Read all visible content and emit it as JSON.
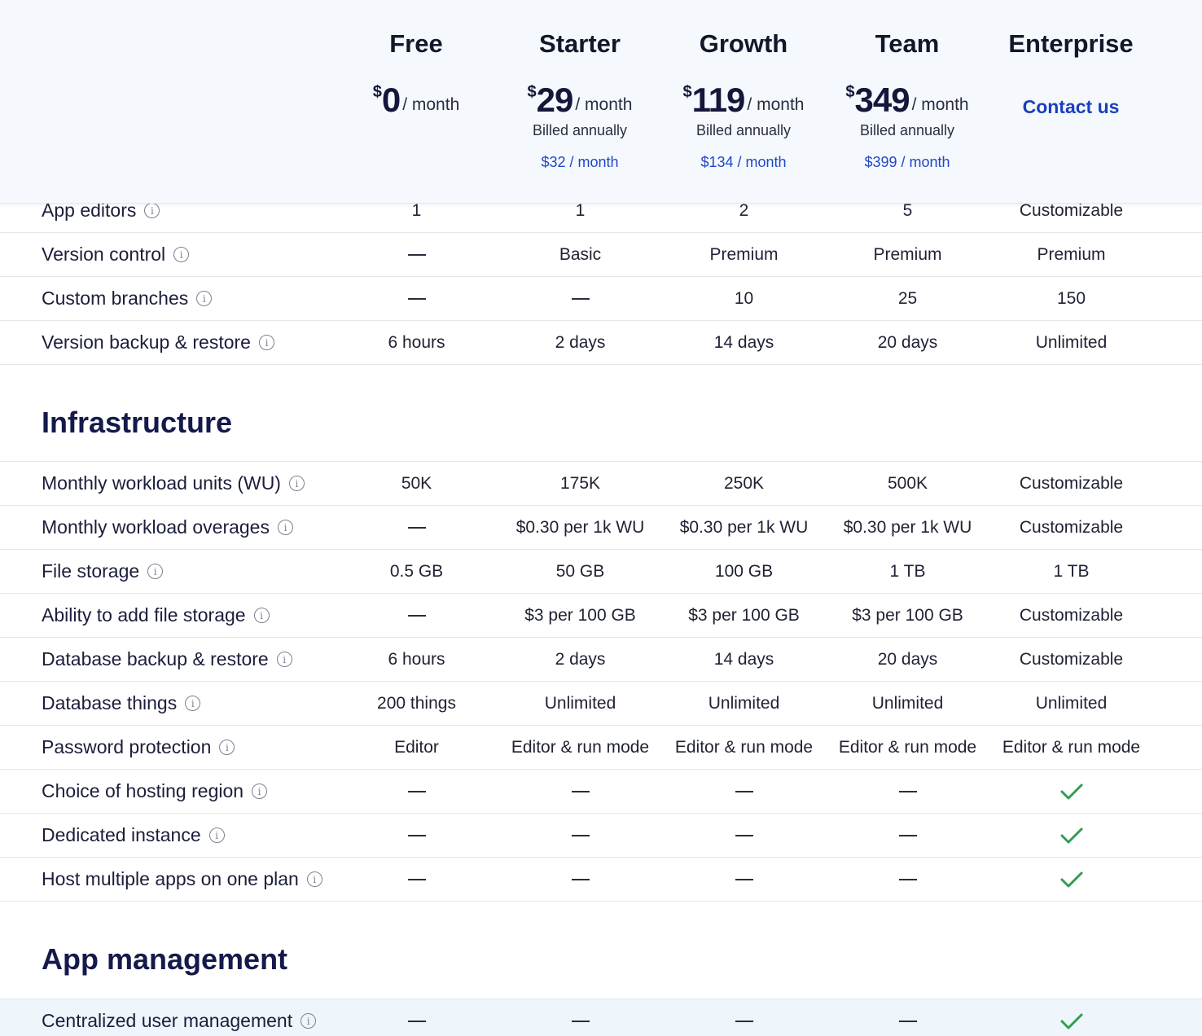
{
  "plans": [
    {
      "name": "Free",
      "currency": "$",
      "amount": "0",
      "per": "/ month",
      "billed": "",
      "monthly": ""
    },
    {
      "name": "Starter",
      "currency": "$",
      "amount": "29",
      "per": "/ month",
      "billed": "Billed annually",
      "monthly": "$32 / month"
    },
    {
      "name": "Growth",
      "currency": "$",
      "amount": "119",
      "per": "/ month",
      "billed": "Billed annually",
      "monthly": "$134 / month"
    },
    {
      "name": "Team",
      "currency": "$",
      "amount": "349",
      "per": "/ month",
      "billed": "Billed annually",
      "monthly": "$399 / month"
    },
    {
      "name": "Enterprise",
      "contact": "Contact us"
    }
  ],
  "top_rows": [
    {
      "feature": "App editors",
      "values": [
        "1",
        "1",
        "2",
        "5",
        "Customizable"
      ]
    },
    {
      "feature": "Version control",
      "values": [
        "—",
        "Basic",
        "Premium",
        "Premium",
        "Premium"
      ]
    },
    {
      "feature": "Custom branches",
      "values": [
        "—",
        "—",
        "10",
        "25",
        "150"
      ]
    },
    {
      "feature": "Version backup & restore",
      "values": [
        "6 hours",
        "2 days",
        "14 days",
        "20 days",
        "Unlimited"
      ]
    }
  ],
  "infrastructure": {
    "title": "Infrastructure",
    "rows": [
      {
        "feature": "Monthly workload units (WU)",
        "values": [
          "50K",
          "175K",
          "250K",
          "500K",
          "Customizable"
        ]
      },
      {
        "feature": "Monthly workload overages",
        "values": [
          "—",
          "$0.30 per 1k WU",
          "$0.30 per 1k WU",
          "$0.30 per 1k WU",
          "Customizable"
        ]
      },
      {
        "feature": "File storage",
        "values": [
          "0.5 GB",
          "50 GB",
          "100 GB",
          "1 TB",
          "1 TB"
        ]
      },
      {
        "feature": "Ability to add file storage",
        "values": [
          "—",
          "$3 per 100 GB",
          "$3 per 100 GB",
          "$3 per 100 GB",
          "Customizable"
        ]
      },
      {
        "feature": "Database backup & restore",
        "values": [
          "6 hours",
          "2 days",
          "14 days",
          "20 days",
          "Customizable"
        ]
      },
      {
        "feature": "Database things",
        "values": [
          "200 things",
          "Unlimited",
          "Unlimited",
          "Unlimited",
          "Unlimited"
        ]
      },
      {
        "feature": "Password protection",
        "values": [
          "Editor",
          "Editor & run mode",
          "Editor & run mode",
          "Editor & run mode",
          "Editor & run mode"
        ]
      },
      {
        "feature": "Choice of hosting region",
        "values": [
          "—",
          "—",
          "—",
          "—",
          "check"
        ]
      },
      {
        "feature": "Dedicated instance",
        "values": [
          "—",
          "—",
          "—",
          "—",
          "check"
        ]
      },
      {
        "feature": "Host multiple apps on one plan",
        "values": [
          "—",
          "—",
          "—",
          "—",
          "check"
        ]
      }
    ]
  },
  "app_management": {
    "title": "App management",
    "rows": [
      {
        "feature": "Centralized user management",
        "values": [
          "—",
          "—",
          "—",
          "—",
          "check"
        ]
      }
    ]
  },
  "colors": {
    "check": "#2e9e4f",
    "link": "#1f47c8",
    "header_bg": "#f5f9fd",
    "highlight_row": "#eef6fc"
  },
  "icons": {
    "info": "info-circle-icon",
    "check": "checkmark-icon",
    "dash": "dash-icon"
  }
}
